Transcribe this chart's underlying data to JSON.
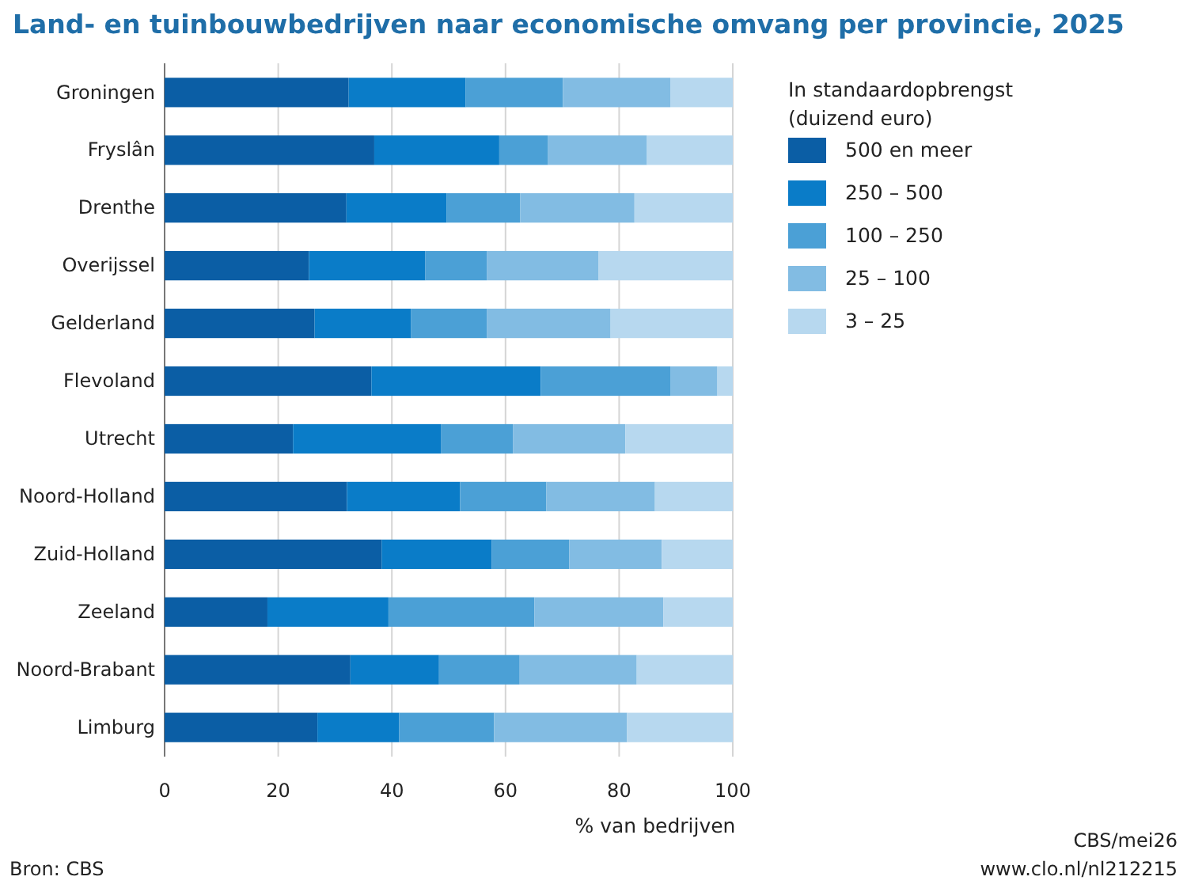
{
  "chart_data": {
    "type": "bar",
    "orientation": "horizontal",
    "stacked": true,
    "title": "Land- en tuinbouwbedrijven naar economische omvang per provincie, 2025",
    "xlabel": "% van bedrijven",
    "legend_title": "In standaardopbrengst (duizend euro)",
    "legend": "top right",
    "grid": "x",
    "categories": [
      "Groningen",
      "Fryslân",
      "Drenthe",
      "Overijssel",
      "Gelderland",
      "Flevoland",
      "Utrecht",
      "Noord-Holland",
      "Zuid-Holland",
      "Zeeland",
      "Noord-Brabant",
      "Limburg"
    ],
    "series": [
      {
        "name": "500 en meer",
        "color": "#0b5ea5",
        "values": [
          32.4,
          36.9,
          32.0,
          25.4,
          26.4,
          36.4,
          22.6,
          32.1,
          38.2,
          18.1,
          32.7,
          26.9
        ]
      },
      {
        "name": "250 – 500",
        "color": "#0a7cc8",
        "values": [
          20.6,
          22.0,
          17.6,
          20.5,
          17.0,
          29.8,
          26.1,
          19.9,
          19.4,
          21.3,
          15.6,
          14.4
        ]
      },
      {
        "name": "100 – 250",
        "color": "#4ba0d6",
        "values": [
          17.1,
          8.6,
          13.0,
          10.8,
          13.3,
          22.8,
          12.6,
          15.2,
          13.6,
          25.7,
          14.2,
          16.7
        ]
      },
      {
        "name": "25 – 100",
        "color": "#82bce3",
        "values": [
          18.9,
          17.4,
          20.1,
          19.7,
          21.8,
          8.3,
          19.8,
          19.1,
          16.3,
          22.7,
          20.6,
          23.4
        ]
      },
      {
        "name": "3 – 25",
        "color": "#b7d8ef",
        "values": [
          11.0,
          15.1,
          17.3,
          23.6,
          21.5,
          2.7,
          18.9,
          13.7,
          12.5,
          12.2,
          16.9,
          18.6
        ]
      }
    ],
    "xlim": [
      0,
      100
    ],
    "xticks": [
      0,
      20,
      40,
      60,
      80,
      100
    ],
    "annotations": [
      "Bron: CBS",
      "CBS/mei26",
      "www.clo.nl/nl212215"
    ]
  }
}
